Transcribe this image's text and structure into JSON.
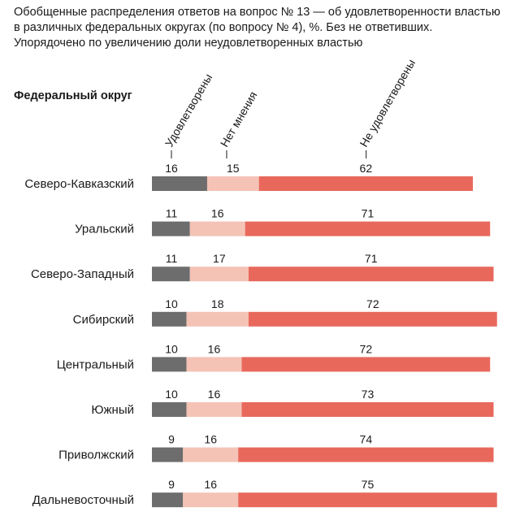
{
  "title_lines": [
    "Обобщенные распределения ответов на вопрос № 13 — об удовлетворенности властью",
    "в различных федеральных округах (по вопросу № 4), %. Без не ответивших.",
    "Упорядочено по увеличению доли неудовлетворенных властью"
  ],
  "chart_data": {
    "type": "bar",
    "stacked": true,
    "orientation": "horizontal",
    "category_header": "Федеральный округ",
    "categories": [
      "Северо-Кавказский",
      "Уральский",
      "Северо-Западный",
      "Сибирский",
      "Центральный",
      "Южный",
      "Приволжский",
      "Дальневосточный"
    ],
    "series": [
      {
        "name": "Удовлетворены",
        "color": "#6d6d6d",
        "values": [
          16,
          11,
          11,
          10,
          10,
          10,
          9,
          9
        ]
      },
      {
        "name": "Нет мнения",
        "color": "#f4c3b6",
        "values": [
          15,
          16,
          17,
          18,
          16,
          16,
          16,
          16
        ]
      },
      {
        "name": "Не удовлетворены",
        "color": "#e8695c",
        "values": [
          62,
          71,
          71,
          72,
          72,
          73,
          74,
          75
        ]
      }
    ],
    "legend_placement": "top-rotated",
    "grid": false
  }
}
